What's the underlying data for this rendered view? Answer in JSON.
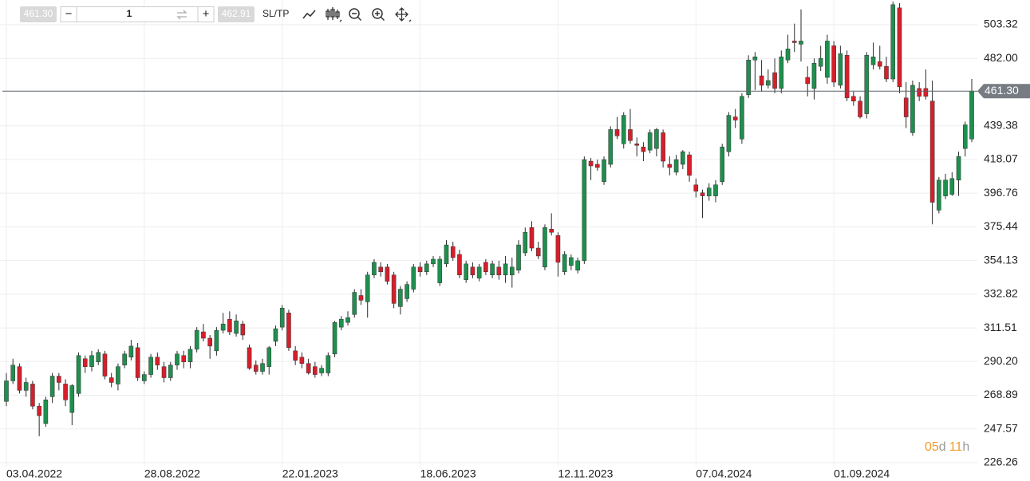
{
  "toolbar": {
    "sell": "461.30",
    "minus": "−",
    "quantity": "1",
    "plus": "+",
    "buy": "462.91",
    "sltp": "SL/TP"
  },
  "countdown": [
    "05",
    "d",
    "11",
    "h"
  ],
  "chart_data": {
    "type": "candlestick",
    "colors": {
      "up": "#1f8f4e",
      "down": "#d51f2b",
      "wick": "#2b2b2b"
    },
    "grid": true,
    "current_price": {
      "value": 461.3,
      "label": "461.30"
    },
    "xlim": [
      -0.97,
      147.85
    ],
    "xticks": [
      {
        "value": 0,
        "label": "03.04.2022"
      },
      {
        "value": 21,
        "label": "28.08.2022"
      },
      {
        "value": 42,
        "label": "22.01.2023"
      },
      {
        "value": 63,
        "label": "18.06.2023"
      },
      {
        "value": 84,
        "label": "12.11.2023"
      },
      {
        "value": 105,
        "label": "07.04.2024"
      },
      {
        "value": 126,
        "label": "01.09.2024"
      }
    ],
    "ylim": [
      223.74,
      518.96
    ],
    "yticks": [
      226.26,
      247.57,
      268.89,
      {
        "value": 290.2,
        "label": "290.20"
      },
      311.51,
      332.82,
      354.13,
      375.44,
      396.76,
      418.07,
      439.38,
      {
        "value": 482,
        "label": "482.00"
      },
      503.32
    ],
    "ohlc": [
      [
        265,
        283,
        262,
        278
      ],
      [
        278,
        292,
        276,
        288
      ],
      [
        287,
        289,
        270,
        272
      ],
      [
        272,
        280,
        268,
        277
      ],
      [
        276,
        278,
        260,
        262
      ],
      [
        262,
        264,
        243,
        256
      ],
      [
        251,
        268,
        249,
        266
      ],
      [
        268,
        283,
        264,
        281
      ],
      [
        281,
        283,
        272,
        277
      ],
      [
        276,
        279,
        262,
        266
      ],
      [
        258,
        276,
        250,
        275
      ],
      [
        270,
        296,
        268,
        294
      ],
      [
        292,
        294,
        283,
        287
      ],
      [
        287,
        297,
        284,
        294
      ],
      [
        290,
        298,
        288,
        296
      ],
      [
        295,
        297,
        279,
        281
      ],
      [
        280,
        283,
        274,
        277
      ],
      [
        276,
        289,
        272,
        287
      ],
      [
        288,
        297,
        286,
        295
      ],
      [
        293,
        304,
        291,
        300
      ],
      [
        299,
        302,
        278,
        280
      ],
      [
        278,
        284,
        276,
        282
      ],
      [
        282,
        295,
        280,
        293
      ],
      [
        293,
        296,
        285,
        288
      ],
      [
        287,
        290,
        277,
        280
      ],
      [
        280,
        290,
        278,
        288
      ],
      [
        288,
        297,
        285,
        295
      ],
      [
        294,
        297,
        286,
        290
      ],
      [
        290,
        300,
        286,
        298
      ],
      [
        298,
        312,
        296,
        310
      ],
      [
        309,
        314,
        303,
        305
      ],
      [
        305,
        307,
        292,
        300
      ],
      [
        297,
        312,
        294,
        310
      ],
      [
        310,
        321,
        308,
        314
      ],
      [
        317,
        322,
        307,
        309
      ],
      [
        308,
        320,
        306,
        316
      ],
      [
        314,
        316,
        304,
        307
      ],
      [
        299,
        301,
        285,
        286
      ],
      [
        288,
        291,
        282,
        284
      ],
      [
        284,
        292,
        282,
        289
      ],
      [
        287,
        300,
        282,
        299
      ],
      [
        303,
        313,
        300,
        311
      ],
      [
        312,
        326,
        310,
        324
      ],
      [
        321,
        323,
        297,
        299
      ],
      [
        297,
        300,
        288,
        291
      ],
      [
        293,
        296,
        286,
        289
      ],
      [
        289,
        292,
        282,
        283
      ],
      [
        287,
        290,
        280,
        282
      ],
      [
        283,
        288,
        281,
        286
      ],
      [
        283,
        296,
        281,
        294
      ],
      [
        295,
        316,
        293,
        315
      ],
      [
        312,
        319,
        310,
        317
      ],
      [
        315,
        322,
        313,
        318
      ],
      [
        320,
        336,
        318,
        334
      ],
      [
        332,
        336,
        326,
        329
      ],
      [
        328,
        347,
        318,
        345
      ],
      [
        345,
        355,
        343,
        353
      ],
      [
        350,
        353,
        344,
        347
      ],
      [
        350,
        352,
        339,
        341
      ],
      [
        345,
        347,
        324,
        327
      ],
      [
        325,
        338,
        320,
        336
      ],
      [
        330,
        341,
        328,
        339
      ],
      [
        336,
        352,
        334,
        350
      ],
      [
        350,
        353,
        344,
        347
      ],
      [
        347,
        354,
        345,
        352
      ],
      [
        352,
        357,
        350,
        355
      ],
      [
        340,
        357,
        338,
        355
      ],
      [
        352,
        367,
        350,
        364
      ],
      [
        363,
        366,
        354,
        356
      ],
      [
        358,
        361,
        343,
        345
      ],
      [
        342,
        354,
        340,
        352
      ],
      [
        350,
        353,
        343,
        345
      ],
      [
        343,
        352,
        341,
        350
      ],
      [
        353,
        355,
        345,
        347
      ],
      [
        345,
        354,
        343,
        352
      ],
      [
        350,
        354,
        342,
        345
      ],
      [
        345,
        357,
        340,
        352
      ],
      [
        345,
        356,
        337,
        350
      ],
      [
        348,
        367,
        346,
        364
      ],
      [
        359,
        375,
        357,
        372
      ],
      [
        375,
        379,
        360,
        362
      ],
      [
        362,
        366,
        355,
        357
      ],
      [
        350,
        377,
        348,
        375
      ],
      [
        374,
        384,
        370,
        372
      ],
      [
        370,
        372,
        344,
        353
      ],
      [
        347,
        360,
        345,
        358
      ],
      [
        351,
        358,
        348,
        356
      ],
      [
        348,
        356,
        346,
        354
      ],
      [
        354,
        420,
        352,
        418
      ],
      [
        417,
        419,
        405,
        414
      ],
      [
        415,
        418,
        411,
        413
      ],
      [
        404,
        420,
        402,
        418
      ],
      [
        415,
        439,
        413,
        437
      ],
      [
        437,
        445,
        431,
        433
      ],
      [
        428,
        448,
        425,
        446
      ],
      [
        437,
        450,
        428,
        430
      ],
      [
        428,
        432,
        420,
        427
      ],
      [
        426,
        429,
        417,
        423
      ],
      [
        424,
        437,
        422,
        435
      ],
      [
        425,
        438,
        420,
        437
      ],
      [
        435,
        437,
        413,
        417
      ],
      [
        415,
        420,
        408,
        413
      ],
      [
        410,
        421,
        408,
        418
      ],
      [
        415,
        424,
        412,
        423
      ],
      [
        421,
        423,
        404,
        408
      ],
      [
        402,
        406,
        394,
        398
      ],
      [
        397,
        399,
        381,
        395
      ],
      [
        395,
        403,
        392,
        400
      ],
      [
        395,
        405,
        391,
        402
      ],
      [
        404,
        428,
        402,
        426
      ],
      [
        423,
        448,
        420,
        446
      ],
      [
        445,
        450,
        438,
        443
      ],
      [
        431,
        460,
        428,
        458
      ],
      [
        459,
        484,
        457,
        481
      ],
      [
        481,
        486,
        462,
        483
      ],
      [
        471,
        481,
        461,
        465
      ],
      [
        465,
        475,
        463,
        468
      ],
      [
        473,
        482,
        460,
        463
      ],
      [
        463,
        487,
        460,
        483
      ],
      [
        481,
        497,
        479,
        488
      ],
      [
        493,
        504,
        486,
        492
      ],
      [
        491,
        513,
        480,
        493
      ],
      [
        470,
        477,
        458,
        466
      ],
      [
        463,
        482,
        456,
        479
      ],
      [
        477,
        490,
        474,
        482
      ],
      [
        470,
        497,
        466,
        493
      ],
      [
        490,
        493,
        464,
        467
      ],
      [
        465,
        490,
        463,
        485
      ],
      [
        484,
        487,
        455,
        457
      ],
      [
        458,
        461,
        452,
        455
      ],
      [
        455,
        458,
        444,
        445
      ],
      [
        447,
        486,
        444,
        484
      ],
      [
        478,
        492,
        475,
        483
      ],
      [
        480,
        490,
        475,
        477
      ],
      [
        477,
        483,
        467,
        469
      ],
      [
        469,
        518,
        467,
        516
      ],
      [
        514,
        517,
        460,
        464
      ],
      [
        457,
        467,
        438,
        445
      ],
      [
        435,
        468,
        433,
        465
      ],
      [
        463,
        467,
        455,
        458
      ],
      [
        463,
        475,
        456,
        458
      ],
      [
        455,
        468,
        377,
        391
      ],
      [
        386,
        407,
        384,
        405
      ],
      [
        395,
        409,
        393,
        405
      ],
      [
        396,
        410,
        395,
        406
      ],
      [
        405,
        423,
        395,
        420
      ],
      [
        425,
        442,
        420,
        440
      ],
      [
        431,
        469,
        429,
        461.3
      ]
    ]
  }
}
